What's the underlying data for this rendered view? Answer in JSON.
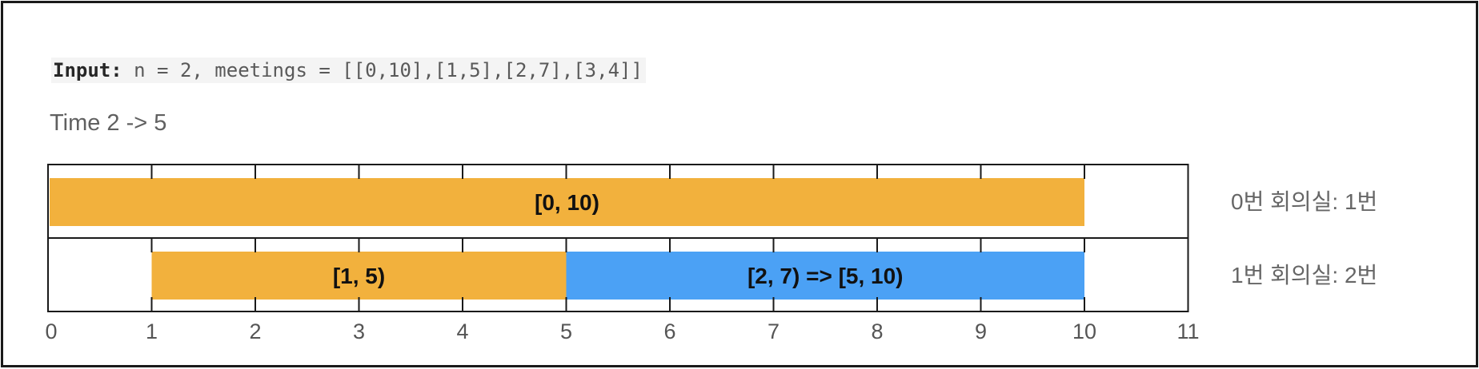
{
  "input": {
    "label": "Input:",
    "value": " n = 2, meetings = [[0,10],[1,5],[2,7],[3,4]]"
  },
  "time_caption": "Time 2 -> 5",
  "rooms": [
    "0번 회의실: 1번",
    "1번 회의실: 2번"
  ],
  "colors": {
    "original_meeting": "#F2B13D",
    "delayed_meeting": "#4BA1F5",
    "grid": "#1a1a1a"
  },
  "axis": {
    "min": 0,
    "max": 11,
    "ticks": [
      "0",
      "1",
      "2",
      "3",
      "4",
      "5",
      "6",
      "7",
      "8",
      "9",
      "10",
      "11"
    ]
  },
  "bars": [
    {
      "row": 0,
      "start": 0,
      "end": 10,
      "label": "[0, 10)",
      "kind": "original_meeting"
    },
    {
      "row": 1,
      "start": 1,
      "end": 5,
      "label": "[1, 5)",
      "kind": "original_meeting"
    },
    {
      "row": 1,
      "start": 5,
      "end": 10,
      "label": "[2, 7) => [5, 10)",
      "kind": "delayed_meeting"
    }
  ]
}
